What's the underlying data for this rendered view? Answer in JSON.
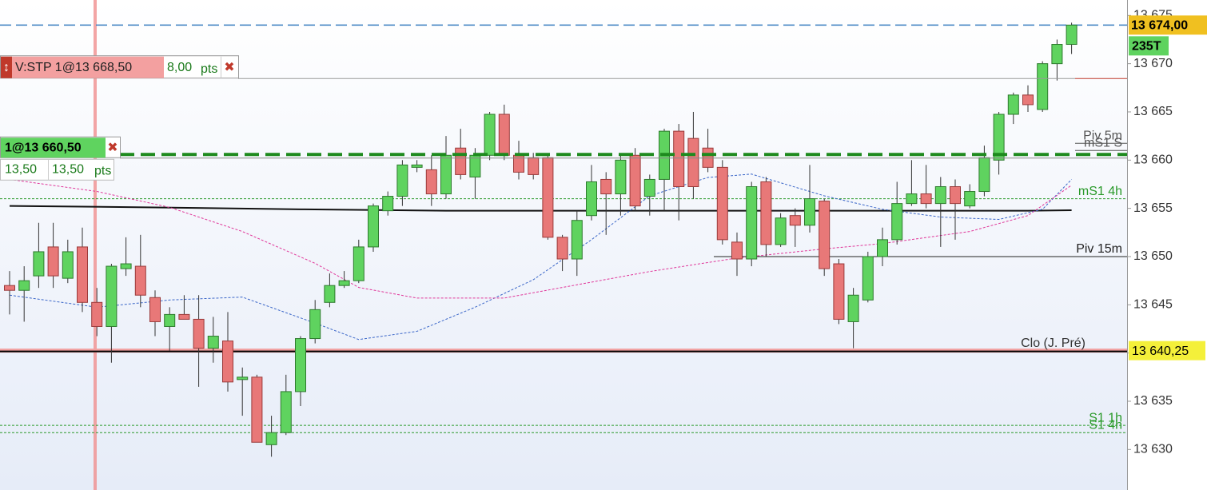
{
  "chart_data": {
    "type": "candlestick",
    "ylim": [
      13625.8,
      13676.6
    ],
    "yticks": [
      {
        "value": 13675,
        "label": "13 675"
      },
      {
        "value": 13670,
        "label": "13 670"
      },
      {
        "value": 13665,
        "label": "13 665"
      },
      {
        "value": 13660,
        "label": "13 660"
      },
      {
        "value": 13655,
        "label": "13 655"
      },
      {
        "value": 13650,
        "label": "13 650"
      },
      {
        "value": 13645,
        "label": "13 645"
      },
      {
        "value": 13640,
        "label": "13 640"
      },
      {
        "value": 13635,
        "label": "13 635"
      },
      {
        "value": 13630,
        "label": "13 630"
      }
    ],
    "up_color": "#5fd35f",
    "down_color": "#e87878",
    "open": [
      13647.0,
      13646.5,
      13648.0,
      13651.0,
      13647.75,
      13651.0,
      13645.25,
      13642.75,
      13648.75,
      13649.0,
      13645.75,
      13642.75,
      13644.0,
      13643.5,
      13640.5,
      13641.25,
      13637.25,
      13637.5,
      13630.5,
      13631.75,
      13636.0,
      13641.5,
      13645.25,
      13647.0,
      13647.5,
      13651.0,
      13654.75,
      13656.25,
      13659.25,
      13659.0,
      13656.5,
      13661.25,
      13658.25,
      13660.5,
      13664.75,
      13660.5,
      13660.25,
      13660.25,
      13652.0,
      13649.75,
      13654.25,
      13658.0,
      13656.5,
      13660.5,
      13656.25,
      13658.0,
      13663.0,
      13662.25,
      13661.25,
      13659.25,
      13651.5,
      13649.75,
      13657.75,
      13651.25,
      13654.25,
      13653.25,
      13655.75,
      13649.25,
      13643.25,
      13645.5,
      13650.0,
      13651.75,
      13655.5,
      13656.5,
      13655.5,
      13657.25,
      13655.25,
      13656.75,
      13660.0,
      13664.75,
      13666.75,
      13665.25,
      13670.0,
      13672.0
    ],
    "high": [
      13648.5,
      13649.0,
      13653.5,
      13653.5,
      13651.75,
      13653.0,
      13646.75,
      13649.25,
      13652.0,
      13652.25,
      13646.5,
      13644.75,
      13646.0,
      13646.0,
      13643.75,
      13644.25,
      13638.5,
      13637.75,
      13633.5,
      13637.75,
      13641.75,
      13645.5,
      13648.25,
      13648.5,
      13651.75,
      13655.5,
      13656.75,
      13660.0,
      13660.0,
      13660.5,
      13662.5,
      13663.25,
      13661.25,
      13665.0,
      13665.75,
      13662.0,
      13660.75,
      13660.5,
      13652.25,
      13654.75,
      13659.5,
      13658.75,
      13660.5,
      13661.25,
      13658.5,
      13663.25,
      13663.75,
      13665.0,
      13663.25,
      13660.0,
      13652.5,
      13657.75,
      13658.25,
      13654.5,
      13655.0,
      13659.5,
      13656.0,
      13649.75,
      13646.75,
      13650.5,
      13653.0,
      13657.75,
      13660.0,
      13659.5,
      13658.25,
      13658.0,
      13657.5,
      13661.5,
      13665.0,
      13667.0,
      13667.75,
      13670.25,
      13672.5,
      13674.25
    ],
    "low": [
      13644.0,
      13643.25,
      13646.75,
      13646.75,
      13647.25,
      13644.25,
      13641.75,
      13639.0,
      13648.0,
      13644.75,
      13641.75,
      13640.25,
      13643.5,
      13636.5,
      13639.0,
      13636.0,
      13633.5,
      13630.75,
      13629.25,
      13631.5,
      13634.5,
      13641.0,
      13644.75,
      13646.75,
      13647.25,
      13650.5,
      13654.25,
      13655.25,
      13658.75,
      13655.25,
      13656.0,
      13658.0,
      13656.0,
      13660.0,
      13660.0,
      13658.0,
      13658.0,
      13651.75,
      13648.5,
      13648.0,
      13653.75,
      13652.25,
      13654.25,
      13654.75,
      13654.25,
      13654.75,
      13653.75,
      13656.0,
      13658.75,
      13651.25,
      13648.0,
      13649.0,
      13650.0,
      13651.0,
      13651.0,
      13652.5,
      13648.0,
      13643.0,
      13640.5,
      13645.25,
      13649.0,
      13651.25,
      13655.25,
      13655.0,
      13651.0,
      13651.75,
      13655.0,
      13656.25,
      13658.5,
      13663.75,
      13665.0,
      13665.0,
      13668.25,
      13671.0
    ],
    "close": [
      13646.5,
      13647.5,
      13650.5,
      13648.0,
      13650.5,
      13645.25,
      13642.75,
      13649.0,
      13649.25,
      13646.0,
      13643.25,
      13644.0,
      13643.5,
      13640.5,
      13641.75,
      13637.0,
      13637.5,
      13630.75,
      13631.75,
      13636.0,
      13641.5,
      13644.5,
      13647.0,
      13647.5,
      13651.0,
      13655.25,
      13656.25,
      13659.5,
      13659.5,
      13656.5,
      13660.5,
      13658.5,
      13660.5,
      13664.75,
      13660.5,
      13658.75,
      13658.5,
      13652.0,
      13649.75,
      13653.75,
      13657.75,
      13656.5,
      13660.0,
      13655.25,
      13658.0,
      13663.0,
      13657.25,
      13657.25,
      13659.25,
      13651.75,
      13649.75,
      13657.25,
      13651.25,
      13654.0,
      13653.25,
      13656.0,
      13648.75,
      13643.5,
      13646.0,
      13650.0,
      13651.75,
      13655.5,
      13656.5,
      13655.5,
      13657.25,
      13655.5,
      13656.75,
      13660.25,
      13664.75,
      13666.75,
      13665.75,
      13670.0,
      13672.0,
      13674.0
    ],
    "indicators": [
      {
        "color": "#111111",
        "dash": false,
        "x": [
          0,
          10,
          20,
          30,
          40,
          50,
          60,
          70,
          73
        ],
        "values": [
          13655.25,
          13655.1,
          13654.9,
          13654.75,
          13654.75,
          13654.75,
          13654.75,
          13654.75,
          13654.8
        ]
      },
      {
        "color": "#3a66c8",
        "dash": true,
        "x": [
          0,
          6,
          11,
          16,
          21,
          24,
          28,
          32,
          36,
          40,
          44,
          48,
          51,
          56,
          60,
          64,
          68,
          71,
          73
        ],
        "values": [
          13646.0,
          13644.75,
          13645.5,
          13645.8,
          13643.1,
          13641.4,
          13642.25,
          13644.75,
          13647.6,
          13651.75,
          13656.3,
          13658.2,
          13658.55,
          13656.3,
          13654.9,
          13654.1,
          13653.85,
          13654.9,
          13658.0
        ]
      },
      {
        "color": "#e0379a",
        "dash": true,
        "x": [
          0,
          6,
          11,
          16,
          21,
          24,
          28,
          34,
          38,
          44,
          50,
          56,
          60,
          66,
          70,
          73
        ],
        "values": [
          13658.0,
          13656.75,
          13655.1,
          13652.6,
          13649.3,
          13646.8,
          13645.7,
          13645.7,
          13646.8,
          13648.45,
          13649.85,
          13650.8,
          13651.35,
          13652.6,
          13654.25,
          13657.4
        ]
      }
    ],
    "levels": [
      {
        "label": "Piv 5m",
        "value": 13661.75,
        "color": "#555555",
        "span": "right"
      },
      {
        "label": "mS1 S",
        "value": 13661.0,
        "color": "#555555",
        "span": "right"
      },
      {
        "label": "mS1 4h",
        "value": 13656.0,
        "color": "#2a9a2a",
        "span": "full"
      },
      {
        "label": "Piv 15m",
        "value": 13650.0,
        "color": "#222222",
        "span": "half"
      },
      {
        "label": "S1 1h",
        "value": 13632.5,
        "color": "#2a9a2a",
        "span": "full"
      },
      {
        "label": "S1 4h",
        "value": 13631.75,
        "color": "#2a9a2a",
        "span": "full"
      }
    ],
    "close_prev": {
      "label": "Clo (J. Pré)",
      "value": 13640.25,
      "tag": "13 640,25"
    },
    "last": {
      "value": 13674.0,
      "tag": "13 674,00",
      "volume": "235T"
    },
    "orders": [
      {
        "label": "V:STP 1@13 668,50",
        "value": 13668.5,
        "pnl": "8,00",
        "unit": "pts"
      },
      {
        "label": "1@13 660,50",
        "value": 13660.5,
        "pnl": "13,50",
        "pnl2": "13,50",
        "unit": "pts"
      }
    ]
  }
}
